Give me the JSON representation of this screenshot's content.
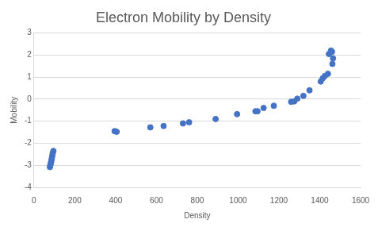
{
  "chart_data": {
    "type": "scatter",
    "title": "Electron Mobility by Density",
    "x_label": "Density",
    "y_label": "Mobility",
    "x": [
      78,
      80,
      82,
      84,
      86,
      88,
      90,
      92,
      95,
      395,
      405,
      570,
      635,
      730,
      760,
      890,
      995,
      1085,
      1095,
      1125,
      1175,
      1260,
      1275,
      1290,
      1320,
      1350,
      1405,
      1415,
      1425,
      1440,
      1445,
      1455,
      1460,
      1465,
      1462
    ],
    "values": [
      -3.08,
      -3.0,
      -2.92,
      -2.85,
      -2.75,
      -2.65,
      -2.55,
      -2.45,
      -2.35,
      -1.45,
      -1.48,
      -1.28,
      -1.22,
      -1.1,
      -1.05,
      -0.9,
      -0.68,
      -0.55,
      -0.55,
      -0.4,
      -0.3,
      -0.12,
      -0.1,
      0.02,
      0.15,
      0.4,
      0.8,
      0.95,
      1.05,
      1.15,
      2.05,
      2.2,
      2.15,
      1.85,
      1.6
    ],
    "color": "#4472c4",
    "marker": "circle",
    "xlim": [
      0,
      1600
    ],
    "xticks": [
      0,
      200,
      400,
      600,
      800,
      1000,
      1200,
      1400,
      1600
    ],
    "ylim": [
      -4,
      3
    ],
    "yticks": [
      -4,
      -3,
      -2,
      -1,
      0,
      1,
      2,
      3
    ],
    "grid": true
  }
}
